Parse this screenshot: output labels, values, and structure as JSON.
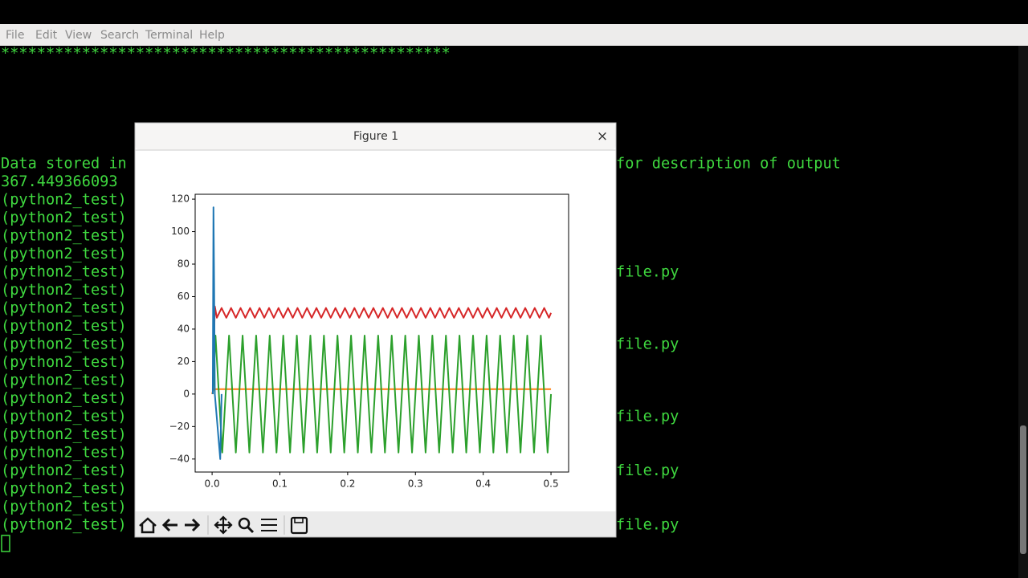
{
  "terminal": {
    "menu": [
      "File",
      "Edit",
      "View",
      "Search",
      "Terminal",
      "Help"
    ],
    "banner": "**************************************************",
    "lines": [
      {
        "left": "Data stored in",
        "right": "for description of output"
      },
      {
        "left": "367.449366093"
      },
      {
        "left": "(python2_test)"
      },
      {
        "left": "(python2_test)"
      },
      {
        "left": "(python2_test)"
      },
      {
        "left": "(python2_test)"
      },
      {
        "left": "(python2_test)",
        "right": "file.py"
      },
      {
        "left": "(python2_test)"
      },
      {
        "left": "(python2_test)"
      },
      {
        "left": "(python2_test)"
      },
      {
        "left": "(python2_test)",
        "right": "file.py"
      },
      {
        "left": "(python2_test)"
      },
      {
        "left": "(python2_test)"
      },
      {
        "left": "(python2_test)"
      },
      {
        "left": "(python2_test)",
        "right": "file.py"
      },
      {
        "left": "(python2_test)"
      },
      {
        "left": "(python2_test)"
      },
      {
        "left": "(python2_test)",
        "right": "file.py"
      },
      {
        "left": "(python2_test)"
      },
      {
        "left": "(python2_test)"
      },
      {
        "left": "(python2_test)",
        "right": "file.py"
      }
    ]
  },
  "window": {
    "title": "Figure 1",
    "close": "×"
  },
  "chart_data": {
    "type": "line",
    "xlim": [
      -0.025,
      0.526
    ],
    "ylim": [
      -48,
      123
    ],
    "xticks": [
      {
        "value": 0,
        "label": "0.0"
      },
      0.1,
      0.2,
      0.3,
      0.4,
      0.5
    ],
    "yticks": [
      {
        "value": -40,
        "label": "−40"
      },
      {
        "value": -20,
        "label": "−20"
      },
      0,
      20,
      40,
      60,
      80,
      100,
      120
    ],
    "grid": false,
    "series": [
      {
        "color": "#d62728",
        "x": [
          0.001,
          0.004,
          0.007,
          0.014,
          0.021,
          0.028,
          0.035,
          0.042,
          0.049,
          0.056,
          0.063,
          0.07,
          0.077,
          0.084,
          0.091,
          0.098,
          0.105,
          0.112,
          0.119,
          0.126,
          0.133,
          0.14,
          0.147,
          0.154,
          0.161,
          0.168,
          0.175,
          0.182,
          0.189,
          0.196,
          0.203,
          0.21,
          0.217,
          0.224,
          0.231,
          0.238,
          0.245,
          0.252,
          0.259,
          0.266,
          0.273,
          0.28,
          0.287,
          0.294,
          0.301,
          0.308,
          0.315,
          0.322,
          0.329,
          0.336,
          0.343,
          0.35,
          0.357,
          0.364,
          0.371,
          0.378,
          0.385,
          0.392,
          0.399,
          0.406,
          0.413,
          0.42,
          0.427,
          0.434,
          0.441,
          0.448,
          0.455,
          0.462,
          0.469,
          0.476,
          0.483,
          0.49,
          0.497,
          0.5
        ],
        "values": [
          0,
          54,
          47,
          53,
          47,
          53,
          47,
          53,
          47,
          53,
          47,
          53,
          47,
          53,
          47,
          53,
          47,
          53,
          47,
          53,
          47,
          53,
          47,
          53,
          47,
          53,
          47,
          53,
          47,
          53,
          47,
          53,
          47,
          53,
          47,
          53,
          47,
          53,
          47,
          53,
          47,
          53,
          47,
          53,
          47,
          53,
          47,
          53,
          47,
          53,
          47,
          53,
          47,
          53,
          47,
          53,
          47,
          53,
          47,
          53,
          47,
          53,
          47,
          53,
          47,
          53,
          47,
          53,
          47,
          53,
          47,
          53,
          47,
          50
        ]
      },
      {
        "color": "#ff7f0e",
        "x": [
          0,
          0.002,
          0.5
        ],
        "values": [
          0,
          3,
          3
        ]
      },
      {
        "color": "#2ca02c",
        "x": [
          0.001,
          0.005,
          0.015,
          0.025,
          0.035,
          0.045,
          0.055,
          0.065,
          0.075,
          0.085,
          0.095,
          0.105,
          0.115,
          0.125,
          0.135,
          0.145,
          0.155,
          0.165,
          0.175,
          0.185,
          0.195,
          0.205,
          0.215,
          0.225,
          0.235,
          0.245,
          0.255,
          0.265,
          0.275,
          0.285,
          0.295,
          0.305,
          0.315,
          0.325,
          0.335,
          0.345,
          0.355,
          0.365,
          0.375,
          0.385,
          0.395,
          0.405,
          0.415,
          0.425,
          0.435,
          0.445,
          0.455,
          0.465,
          0.475,
          0.485,
          0.495,
          0.5
        ],
        "values": [
          0,
          36,
          -36,
          36,
          -36,
          36,
          -36,
          36,
          -36,
          36,
          -36,
          36,
          -36,
          36,
          -36,
          36,
          -36,
          36,
          -36,
          36,
          -36,
          36,
          -36,
          36,
          -36,
          36,
          -36,
          36,
          -36,
          36,
          -36,
          36,
          -36,
          36,
          -36,
          36,
          -36,
          36,
          -36,
          36,
          -36,
          36,
          -36,
          36,
          -36,
          36,
          -36,
          36,
          -36,
          36,
          -36,
          0
        ]
      },
      {
        "color": "#1f77b4",
        "x": [
          0.001,
          0.002,
          0.003,
          0.004,
          0.012,
          0.014
        ],
        "values": [
          0,
          115,
          67,
          0,
          -40,
          0
        ]
      }
    ]
  }
}
